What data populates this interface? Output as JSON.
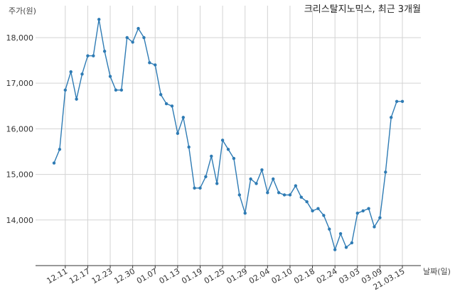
{
  "chart_data": {
    "type": "line",
    "title": "크리스탈지노믹스, 최근 3개월",
    "ylabel": "주가(원)",
    "xlabel": "날짜(일)",
    "ylim": [
      13000,
      18700
    ],
    "yticks": [
      14000,
      15000,
      16000,
      17000,
      18000
    ],
    "ytick_labels": [
      "14,000",
      "15,000",
      "16,000",
      "17,000",
      "18,000"
    ],
    "grid": true,
    "line_color": "#2e7bb4",
    "xtick_labels": [
      {
        "index": 2,
        "label": "12.11"
      },
      {
        "index": 6,
        "label": "12.17"
      },
      {
        "index": 10,
        "label": "12.23"
      },
      {
        "index": 14,
        "label": "12.30"
      },
      {
        "index": 18,
        "label": "01.07"
      },
      {
        "index": 22,
        "label": "01.13"
      },
      {
        "index": 26,
        "label": "01.19"
      },
      {
        "index": 30,
        "label": "01.25"
      },
      {
        "index": 34,
        "label": "01.29"
      },
      {
        "index": 38,
        "label": "02.04"
      },
      {
        "index": 42,
        "label": "02.10"
      },
      {
        "index": 46,
        "label": "02.18"
      },
      {
        "index": 50,
        "label": "02.24"
      },
      {
        "index": 54,
        "label": "03.03"
      },
      {
        "index": 58,
        "label": "03.09"
      },
      {
        "index": 62,
        "label": "21.03.15"
      }
    ],
    "series": [
      {
        "values": [
          15250,
          15550,
          16850,
          17250,
          16650,
          17200,
          17600,
          17600,
          18400,
          17700,
          17150,
          16850,
          16850,
          18000,
          17900,
          18200,
          18000,
          17450,
          17400,
          16750,
          16550,
          16500,
          15900,
          16250,
          15600,
          14700,
          14700,
          14950,
          15400,
          14800,
          15750,
          15550,
          15350,
          14550,
          14150,
          14900,
          14800,
          15100,
          14600,
          14900,
          14600,
          14550,
          14550,
          14750,
          14500,
          14400,
          14200,
          14250,
          14100,
          13800,
          13350,
          13700,
          13400,
          13500,
          14150,
          14200,
          14250,
          13850,
          14050,
          15050,
          16250,
          16600,
          16600
        ]
      }
    ]
  }
}
